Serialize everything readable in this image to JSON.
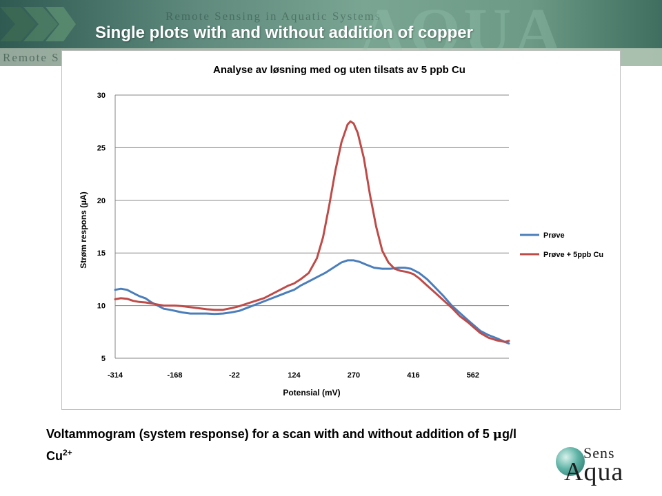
{
  "slide": {
    "title": "Single plots with and without addition of copper",
    "caption_main": "Voltammogram (system response) for a scan with and without addition of 5 ",
    "caption_mu": "μ",
    "caption_unit": "g/l Cu",
    "caption_sup": "2+",
    "banner_header_text": "Remote Sensing in Aquatic Systems",
    "banner_left_text": "Remote S",
    "banner_word": "AQUA",
    "logo_top": "Sens",
    "logo_bottom": "Aqua"
  },
  "colors": {
    "series_prove": "#4a7ebb",
    "series_cu": "#be4b48",
    "grid": "#868686",
    "title_text": "#ffffff"
  },
  "chart_data": {
    "type": "line",
    "title": "Analyse av løsning med og uten tilsats av 5 ppb Cu",
    "xlabel": "Potensial (mV)",
    "ylabel": "Strøm respons (µA)",
    "ylim": [
      5,
      30
    ],
    "yticks": [
      5,
      10,
      15,
      20,
      25,
      30
    ],
    "xlim": [
      -314,
      650
    ],
    "xticks": [
      -314,
      -168,
      -22,
      124,
      270,
      416,
      562
    ],
    "grid": "horizontal",
    "legend_position": "right",
    "series": [
      {
        "name": "Prøve",
        "points": [
          [
            -314,
            11.5
          ],
          [
            -300,
            11.6
          ],
          [
            -285,
            11.5
          ],
          [
            -270,
            11.2
          ],
          [
            -255,
            10.9
          ],
          [
            -240,
            10.7
          ],
          [
            -225,
            10.3
          ],
          [
            -210,
            10.0
          ],
          [
            -195,
            9.7
          ],
          [
            -180,
            9.6
          ],
          [
            -168,
            9.5
          ],
          [
            -150,
            9.35
          ],
          [
            -130,
            9.25
          ],
          [
            -110,
            9.25
          ],
          [
            -90,
            9.25
          ],
          [
            -70,
            9.2
          ],
          [
            -50,
            9.25
          ],
          [
            -30,
            9.35
          ],
          [
            -10,
            9.5
          ],
          [
            10,
            9.8
          ],
          [
            30,
            10.1
          ],
          [
            50,
            10.4
          ],
          [
            70,
            10.7
          ],
          [
            90,
            11.0
          ],
          [
            110,
            11.3
          ],
          [
            124,
            11.5
          ],
          [
            140,
            11.9
          ],
          [
            160,
            12.3
          ],
          [
            180,
            12.7
          ],
          [
            200,
            13.1
          ],
          [
            220,
            13.6
          ],
          [
            240,
            14.1
          ],
          [
            255,
            14.3
          ],
          [
            270,
            14.3
          ],
          [
            285,
            14.15
          ],
          [
            300,
            13.9
          ],
          [
            320,
            13.6
          ],
          [
            340,
            13.5
          ],
          [
            360,
            13.5
          ],
          [
            380,
            13.6
          ],
          [
            395,
            13.6
          ],
          [
            410,
            13.5
          ],
          [
            430,
            13.1
          ],
          [
            450,
            12.5
          ],
          [
            470,
            11.7
          ],
          [
            490,
            10.9
          ],
          [
            510,
            10.0
          ],
          [
            530,
            9.3
          ],
          [
            550,
            8.6
          ],
          [
            562,
            8.2
          ],
          [
            580,
            7.6
          ],
          [
            600,
            7.2
          ],
          [
            620,
            6.9
          ],
          [
            640,
            6.55
          ],
          [
            650,
            6.4
          ]
        ]
      },
      {
        "name": "Prøve + 5ppb Cu",
        "points": [
          [
            -314,
            10.6
          ],
          [
            -300,
            10.7
          ],
          [
            -285,
            10.65
          ],
          [
            -270,
            10.45
          ],
          [
            -255,
            10.35
          ],
          [
            -240,
            10.3
          ],
          [
            -225,
            10.2
          ],
          [
            -210,
            10.1
          ],
          [
            -195,
            10.0
          ],
          [
            -180,
            10.0
          ],
          [
            -168,
            10.0
          ],
          [
            -150,
            9.95
          ],
          [
            -130,
            9.85
          ],
          [
            -110,
            9.75
          ],
          [
            -90,
            9.65
          ],
          [
            -70,
            9.6
          ],
          [
            -50,
            9.6
          ],
          [
            -30,
            9.75
          ],
          [
            -10,
            9.95
          ],
          [
            10,
            10.2
          ],
          [
            30,
            10.45
          ],
          [
            50,
            10.7
          ],
          [
            70,
            11.1
          ],
          [
            90,
            11.5
          ],
          [
            110,
            11.9
          ],
          [
            124,
            12.1
          ],
          [
            140,
            12.5
          ],
          [
            160,
            13.1
          ],
          [
            180,
            14.5
          ],
          [
            195,
            16.5
          ],
          [
            210,
            19.5
          ],
          [
            225,
            22.8
          ],
          [
            240,
            25.5
          ],
          [
            255,
            27.2
          ],
          [
            262,
            27.5
          ],
          [
            270,
            27.3
          ],
          [
            280,
            26.4
          ],
          [
            295,
            24.0
          ],
          [
            310,
            20.5
          ],
          [
            325,
            17.5
          ],
          [
            340,
            15.2
          ],
          [
            355,
            14.1
          ],
          [
            370,
            13.5
          ],
          [
            385,
            13.3
          ],
          [
            400,
            13.2
          ],
          [
            416,
            13.0
          ],
          [
            430,
            12.6
          ],
          [
            450,
            11.9
          ],
          [
            470,
            11.2
          ],
          [
            490,
            10.5
          ],
          [
            510,
            9.8
          ],
          [
            530,
            9.0
          ],
          [
            550,
            8.4
          ],
          [
            562,
            8.0
          ],
          [
            580,
            7.4
          ],
          [
            600,
            6.95
          ],
          [
            620,
            6.7
          ],
          [
            640,
            6.55
          ],
          [
            650,
            6.65
          ]
        ]
      }
    ]
  }
}
